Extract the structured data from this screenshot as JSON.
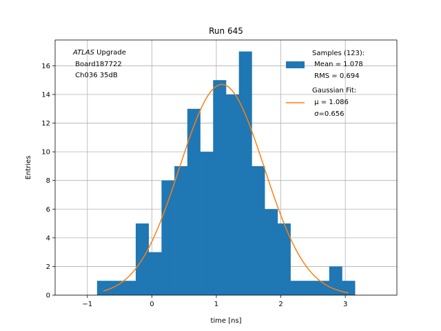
{
  "chart_data": {
    "type": "bar",
    "title": "Run 645",
    "xlabel": "time [ns]",
    "ylabel": "Entries",
    "xlim": [
      -1.5,
      3.8
    ],
    "ylim": [
      0,
      17.8
    ],
    "grid": true,
    "xticks": [
      -1,
      0,
      1,
      2,
      3
    ],
    "yticks": [
      0,
      2,
      4,
      6,
      8,
      10,
      12,
      14,
      16
    ],
    "bin_width": 0.2,
    "bins": [
      {
        "x0": -0.85,
        "value": 1
      },
      {
        "x0": -0.65,
        "value": 1
      },
      {
        "x0": -0.45,
        "value": 1
      },
      {
        "x0": -0.25,
        "value": 5
      },
      {
        "x0": -0.05,
        "value": 3
      },
      {
        "x0": 0.15,
        "value": 8
      },
      {
        "x0": 0.35,
        "value": 9
      },
      {
        "x0": 0.55,
        "value": 13
      },
      {
        "x0": 0.75,
        "value": 10
      },
      {
        "x0": 0.95,
        "value": 15
      },
      {
        "x0": 1.15,
        "value": 14
      },
      {
        "x0": 1.35,
        "value": 17
      },
      {
        "x0": 1.55,
        "value": 9
      },
      {
        "x0": 1.75,
        "value": 6
      },
      {
        "x0": 1.95,
        "value": 5
      },
      {
        "x0": 2.15,
        "value": 1
      },
      {
        "x0": 2.35,
        "value": 1
      },
      {
        "x0": 2.55,
        "value": 1
      },
      {
        "x0": 2.75,
        "value": 2
      },
      {
        "x0": 2.95,
        "value": 1
      }
    ],
    "gaussian": {
      "amplitude": 14.7,
      "mu": 1.086,
      "sigma": 0.656,
      "x_range": [
        -0.75,
        3.05
      ]
    },
    "legend": {
      "placement": "top-right",
      "samples": [
        "Samples (123):",
        " Mean = 1.078",
        " RMS = 0.694"
      ],
      "fit": [
        "Gaussian Fit:",
        " μ = 1.086",
        " σ=0.656"
      ]
    },
    "annotation": {
      "placement": "top-left",
      "line1_italic": "ATLAS",
      "line1_rest": " Upgrade",
      "line2": " Board187722",
      "line3": " Ch036 35dB"
    },
    "colors": {
      "bars": "#1f77b4",
      "fit": "#ff7f0e",
      "grid": "#b0b0b0"
    }
  }
}
